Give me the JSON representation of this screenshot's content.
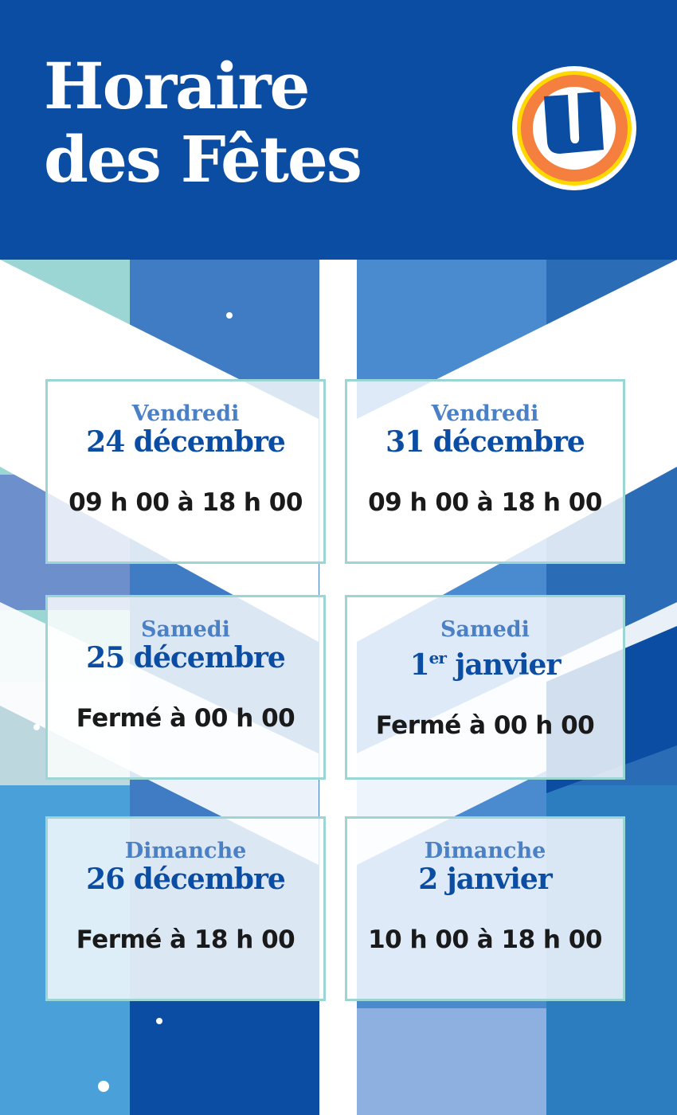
{
  "header": {
    "title_line1": "Horaire",
    "title_line2": "des Fêtes",
    "logo_letter": "U"
  },
  "colors": {
    "brand_blue": "#0a4da2",
    "light_blue": "#4a80c6",
    "teal": "#9bd6d4",
    "orange": "#f47f3e",
    "yellow": "#ffd800"
  },
  "schedule": [
    {
      "day": "Vendredi",
      "date": "24 décembre",
      "hours": "09 h 00 à 18 h 00"
    },
    {
      "day": "Vendredi",
      "date": "31 décembre",
      "hours": "09 h 00 à 18 h 00"
    },
    {
      "day": "Samedi",
      "date": "25 décembre",
      "hours": "Fermé à 00 h 00"
    },
    {
      "day": "Samedi",
      "date_num": "1",
      "date_sup": "er",
      "date_rest": " janvier",
      "hours": "Fermé à 00 h 00"
    },
    {
      "day": "Dimanche",
      "date": "26 décembre",
      "hours": "Fermé à 18 h 00"
    },
    {
      "day": "Dimanche",
      "date": "2 janvier",
      "hours": "10 h 00 à 18 h 00"
    }
  ]
}
